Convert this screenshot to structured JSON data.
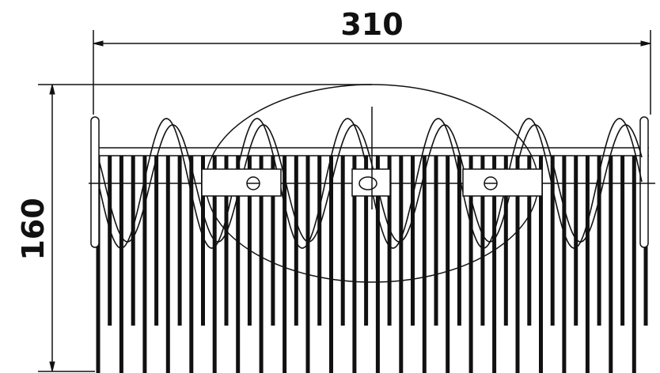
{
  "dimensions": {
    "width_label": "310",
    "height_label": "160"
  },
  "drawing": {
    "stroke_color": "#111111",
    "background": "#ffffff"
  }
}
